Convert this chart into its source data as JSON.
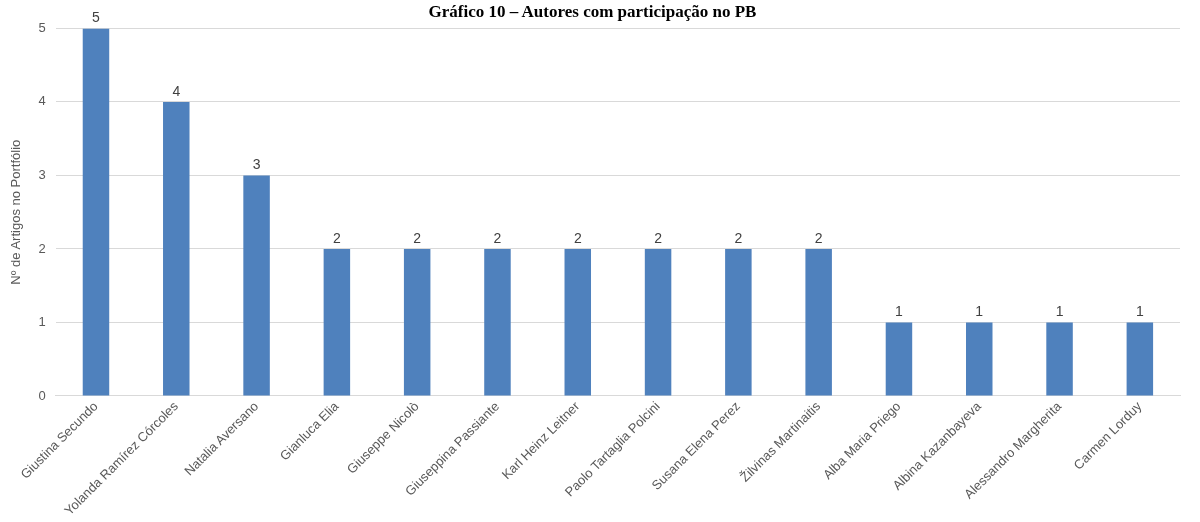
{
  "chart_data": {
    "type": "bar",
    "title": "Gráfico 10 – Autores com participação no PB",
    "ylabel": "Nº de Artigos no Portfólio",
    "categories": [
      "Giustina Secundo",
      "Yolanda Ramírez Córcoles",
      "Natalia Aversano",
      "Gianluca Elia",
      "Giuseppe Nicolò",
      "Giuseppina Passiante",
      "Karl Heinz Leitner",
      "Paolo Tartaglia Polcini",
      "Susana Elena Perez",
      "Žilvinas Martinaitis",
      "Alba Maria Priego",
      "Albina Kazanbayeva",
      "Alessandro Margherita",
      "Carmen Lorduy"
    ],
    "values": [
      5,
      4,
      3,
      2,
      2,
      2,
      2,
      2,
      2,
      2,
      1,
      1,
      1,
      1
    ],
    "color": "#4f81bd",
    "ylim": [
      0,
      5
    ],
    "yticks": [
      0,
      1,
      2,
      3,
      4,
      5
    ],
    "grid": "y",
    "data_labels": true,
    "legend": false
  }
}
